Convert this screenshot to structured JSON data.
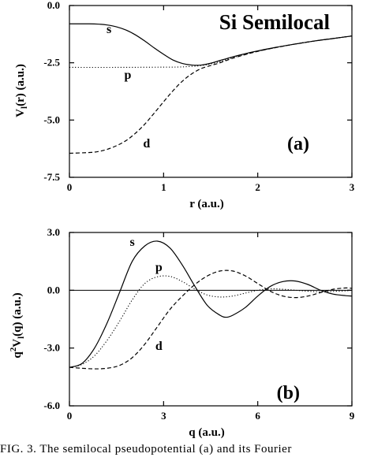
{
  "caption": "FIG. 3. The semilocal pseudopotential (a) and its Fourier",
  "chart_data": [
    {
      "type": "line",
      "title": "Si Semilocal",
      "panel_label": "(a)",
      "xlabel": "r (a.u.)",
      "ylabel": "V_l(r) (a.u.)",
      "ylabel_main": "V",
      "ylabel_sub": "l",
      "ylabel_rest": "(r) (a.u.)",
      "xlim": [
        0,
        3
      ],
      "ylim": [
        -7.5,
        0.0
      ],
      "xticks": [
        0,
        1,
        2,
        3
      ],
      "xtick_labels": [
        "0",
        "1",
        "2",
        "3"
      ],
      "yticks": [
        0.0,
        -2.5,
        -5.0,
        -7.5
      ],
      "ytick_labels": [
        "0.0",
        "-2.5",
        "-5.0",
        "-7.5"
      ],
      "grid": false,
      "series": [
        {
          "name": "s",
          "style": "solid",
          "label_pos": [
            0.42,
            -1.2
          ],
          "x": [
            0,
            0.2,
            0.3,
            0.4,
            0.5,
            0.6,
            0.7,
            0.8,
            0.9,
            1.0,
            1.1,
            1.2,
            1.3,
            1.4,
            1.5,
            1.6,
            1.7,
            1.8,
            1.9,
            2.0,
            2.2,
            2.4,
            2.6,
            2.8,
            3.0
          ],
          "y": [
            -0.8,
            -0.8,
            -0.81,
            -0.85,
            -0.93,
            -1.07,
            -1.28,
            -1.55,
            -1.85,
            -2.13,
            -2.38,
            -2.53,
            -2.6,
            -2.6,
            -2.52,
            -2.4,
            -2.28,
            -2.17,
            -2.07,
            -1.98,
            -1.82,
            -1.68,
            -1.55,
            -1.44,
            -1.33
          ]
        },
        {
          "name": "p",
          "style": "dotted",
          "label_pos": [
            0.62,
            -3.2
          ],
          "x": [
            0,
            0.5,
            1.0,
            1.2,
            1.4,
            1.5,
            1.6,
            1.7,
            1.8,
            2.0,
            2.2,
            2.4,
            2.6,
            2.8,
            3.0
          ],
          "y": [
            -2.7,
            -2.7,
            -2.69,
            -2.68,
            -2.62,
            -2.55,
            -2.45,
            -2.32,
            -2.2,
            -2.0,
            -1.83,
            -1.68,
            -1.55,
            -1.44,
            -1.33
          ]
        },
        {
          "name": "d",
          "style": "dashed",
          "label_pos": [
            0.82,
            -6.2
          ],
          "x": [
            0,
            0.2,
            0.3,
            0.4,
            0.5,
            0.6,
            0.7,
            0.8,
            0.9,
            1.0,
            1.1,
            1.2,
            1.3,
            1.4,
            1.5,
            1.6,
            1.7,
            1.8,
            2.0,
            2.2,
            2.4,
            2.6,
            2.8,
            3.0
          ],
          "y": [
            -6.45,
            -6.42,
            -6.38,
            -6.28,
            -6.12,
            -5.9,
            -5.58,
            -5.18,
            -4.7,
            -4.2,
            -3.72,
            -3.3,
            -2.98,
            -2.75,
            -2.62,
            -2.5,
            -2.35,
            -2.22,
            -2.0,
            -1.83,
            -1.68,
            -1.55,
            -1.44,
            -1.33
          ]
        }
      ]
    },
    {
      "type": "line",
      "title": "",
      "panel_label": "(b)",
      "xlabel": "q (a.u.)",
      "ylabel": "q^2 V_l(q) (a.u.)",
      "ylabel_q": "q",
      "ylabel_sup": "2",
      "ylabel_main": "V",
      "ylabel_sub": "l",
      "ylabel_rest": "(q) (a.u.)",
      "xlim": [
        0,
        9
      ],
      "ylim": [
        -6.0,
        3.0
      ],
      "xticks": [
        0,
        3,
        6,
        9
      ],
      "xtick_labels": [
        "0",
        "3",
        "6",
        "9"
      ],
      "yticks": [
        3.0,
        0.0,
        -3.0,
        -6.0
      ],
      "ytick_labels": [
        "3.0",
        "0.0",
        "-3.0",
        "-6.0"
      ],
      "zero_line": true,
      "grid": false,
      "series": [
        {
          "name": "s",
          "style": "solid",
          "label_pos": [
            2.0,
            2.3
          ],
          "x": [
            0,
            0.4,
            0.8,
            1.2,
            1.6,
            2.0,
            2.4,
            2.8,
            3.2,
            3.6,
            4.0,
            4.4,
            4.8,
            5.0,
            5.2,
            5.6,
            6.0,
            6.4,
            6.8,
            7.2,
            7.6,
            8.0,
            8.4,
            8.8,
            9.0
          ],
          "y": [
            -4.0,
            -3.8,
            -3.0,
            -1.7,
            -0.1,
            1.5,
            2.3,
            2.55,
            2.2,
            1.3,
            0.2,
            -0.8,
            -1.3,
            -1.4,
            -1.3,
            -0.9,
            -0.3,
            0.2,
            0.45,
            0.48,
            0.3,
            0.0,
            -0.2,
            -0.28,
            -0.3
          ]
        },
        {
          "name": "p",
          "style": "dotted",
          "label_pos": [
            2.85,
            1.0
          ],
          "x": [
            0,
            0.4,
            0.8,
            1.2,
            1.6,
            2.0,
            2.4,
            2.8,
            3.2,
            3.6,
            4.0,
            4.4,
            4.8,
            5.2,
            5.6,
            6.0,
            6.4,
            6.8,
            7.2,
            7.6,
            8.0,
            8.4,
            8.8,
            9.0
          ],
          "y": [
            -4.0,
            -3.85,
            -3.4,
            -2.6,
            -1.6,
            -0.5,
            0.35,
            0.7,
            0.72,
            0.45,
            0.05,
            -0.25,
            -0.35,
            -0.3,
            -0.15,
            0.0,
            0.07,
            0.05,
            0.0,
            -0.05,
            -0.08,
            -0.06,
            -0.03,
            0.0
          ]
        },
        {
          "name": "d",
          "style": "dashed",
          "label_pos": [
            2.85,
            -3.1
          ],
          "x": [
            0,
            0.4,
            0.8,
            1.2,
            1.6,
            2.0,
            2.4,
            2.8,
            3.2,
            3.6,
            4.0,
            4.4,
            4.8,
            5.2,
            5.6,
            6.0,
            6.4,
            6.8,
            7.2,
            7.6,
            8.0,
            8.4,
            8.8,
            9.0
          ],
          "y": [
            -4.0,
            -4.05,
            -4.08,
            -4.05,
            -3.9,
            -3.5,
            -2.8,
            -1.9,
            -1.0,
            -0.3,
            0.3,
            0.75,
            1.0,
            1.0,
            0.75,
            0.35,
            -0.05,
            -0.3,
            -0.38,
            -0.3,
            -0.12,
            0.05,
            0.12,
            0.1
          ]
        }
      ]
    }
  ]
}
